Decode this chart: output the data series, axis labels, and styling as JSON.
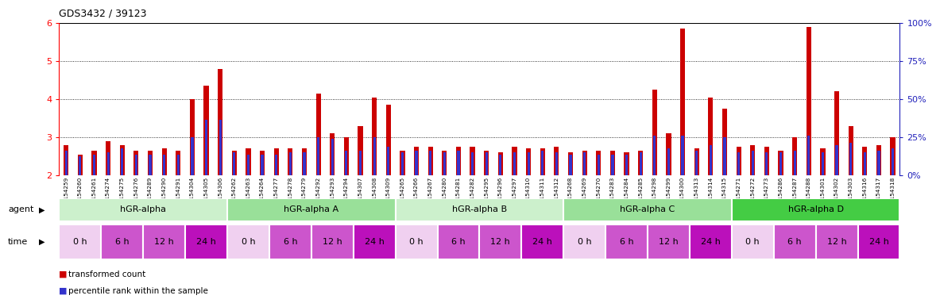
{
  "title": "GDS3432 / 39123",
  "samples": [
    "GSM154259",
    "GSM154260",
    "GSM154261",
    "GSM154274",
    "GSM154275",
    "GSM154276",
    "GSM154289",
    "GSM154290",
    "GSM154291",
    "GSM154304",
    "GSM154305",
    "GSM154306",
    "GSM154262",
    "GSM154263",
    "GSM154264",
    "GSM154277",
    "GSM154278",
    "GSM154279",
    "GSM154292",
    "GSM154293",
    "GSM154294",
    "GSM154307",
    "GSM154308",
    "GSM154309",
    "GSM154265",
    "GSM154266",
    "GSM154267",
    "GSM154280",
    "GSM154281",
    "GSM154282",
    "GSM154295",
    "GSM154296",
    "GSM154297",
    "GSM154310",
    "GSM154311",
    "GSM154312",
    "GSM154268",
    "GSM154269",
    "GSM154270",
    "GSM154283",
    "GSM154284",
    "GSM154285",
    "GSM154298",
    "GSM154299",
    "GSM154300",
    "GSM154313",
    "GSM154314",
    "GSM154315",
    "GSM154271",
    "GSM154272",
    "GSM154273",
    "GSM154286",
    "GSM154287",
    "GSM154288",
    "GSM154301",
    "GSM154302",
    "GSM154303",
    "GSM154316",
    "GSM154317",
    "GSM154318"
  ],
  "red_values": [
    2.8,
    2.55,
    2.65,
    2.9,
    2.8,
    2.65,
    2.65,
    2.7,
    2.65,
    4.0,
    4.35,
    4.8,
    2.65,
    2.7,
    2.65,
    2.7,
    2.7,
    2.7,
    4.15,
    3.1,
    3.0,
    3.3,
    4.05,
    3.85,
    2.65,
    2.75,
    2.75,
    2.65,
    2.75,
    2.75,
    2.65,
    2.6,
    2.75,
    2.7,
    2.7,
    2.75,
    2.6,
    2.65,
    2.65,
    2.65,
    2.6,
    2.65,
    4.25,
    3.1,
    5.85,
    2.7,
    4.05,
    3.75,
    2.75,
    2.8,
    2.75,
    2.65,
    3.0,
    5.9,
    2.7,
    4.2,
    3.3,
    2.75,
    2.8,
    3.0
  ],
  "blue_values": [
    2.65,
    2.5,
    2.55,
    2.6,
    2.7,
    2.55,
    2.55,
    2.55,
    2.55,
    3.0,
    3.45,
    3.45,
    2.6,
    2.55,
    2.55,
    2.55,
    2.6,
    2.6,
    3.0,
    2.95,
    2.65,
    2.65,
    3.0,
    2.75,
    2.6,
    2.65,
    2.65,
    2.6,
    2.65,
    2.6,
    2.6,
    2.55,
    2.6,
    2.6,
    2.65,
    2.6,
    2.55,
    2.6,
    2.55,
    2.55,
    2.55,
    2.6,
    3.05,
    2.7,
    3.05,
    2.65,
    2.8,
    3.0,
    2.6,
    2.65,
    2.6,
    2.6,
    2.65,
    3.05,
    2.6,
    2.8,
    2.85,
    2.6,
    2.65,
    2.7
  ],
  "groups": [
    {
      "label": "hGR-alpha",
      "color": "#ccf0cc",
      "start": 0,
      "end": 12
    },
    {
      "label": "hGR-alpha A",
      "color": "#99e099",
      "start": 12,
      "end": 24
    },
    {
      "label": "hGR-alpha B",
      "color": "#ccf0cc",
      "start": 24,
      "end": 36
    },
    {
      "label": "hGR-alpha C",
      "color": "#99e099",
      "start": 36,
      "end": 48
    },
    {
      "label": "hGR-alpha D",
      "color": "#44cc44",
      "start": 48,
      "end": 60
    }
  ],
  "time_labels": [
    "0 h",
    "6 h",
    "12 h",
    "24 h"
  ],
  "time_colors": [
    "#f0d0f0",
    "#cc55cc",
    "#cc55cc",
    "#bb10bb"
  ],
  "ylim": [
    2.0,
    6.0
  ],
  "yticks_left": [
    2,
    3,
    4,
    5,
    6
  ],
  "yticks_right": [
    "100%",
    "75%",
    "50%",
    "25%",
    "0%"
  ],
  "yticks_right_pos": [
    6,
    5,
    4,
    3,
    2
  ],
  "bar_color_red": "#cc0000",
  "bar_color_blue": "#3333cc",
  "right_axis_color": "#2222bb",
  "baseline": 2.0
}
